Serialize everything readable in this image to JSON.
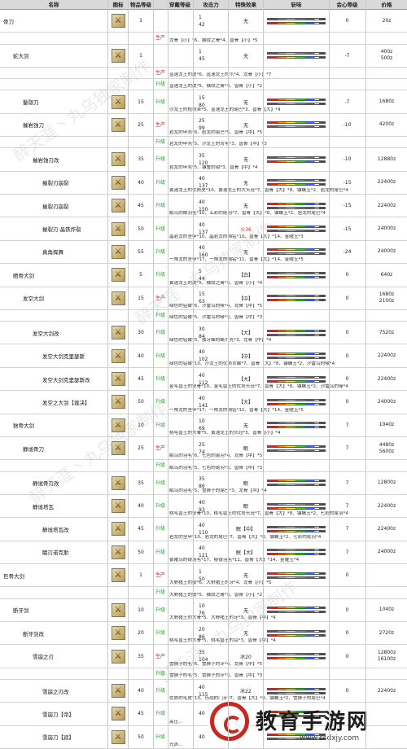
{
  "header": {
    "name": "名称",
    "icon": "图标",
    "rarity": "物品等级",
    "slot": "穿戴等级",
    "attack": "攻击力",
    "effect": "特殊效果",
    "sharpness": "斩味",
    "affinity": "会心等级",
    "price": "价格"
  },
  "rows": [
    {
      "name": "骨刀",
      "indent": 0,
      "rarity": "1",
      "slot": "1",
      "attack": "42",
      "effect": "无",
      "affinity": "0",
      "price": "20z",
      "status": "",
      "materials": ""
    },
    {
      "name": "",
      "indent": 0,
      "rarity": "",
      "slot": "",
      "attack": "",
      "effect": "",
      "affinity": "",
      "price": "",
      "status": "生产",
      "materials": "龙骨【小】*6、横纹之骨*4、兽骨【小】*5"
    },
    {
      "name": "蛇大剑",
      "indent": 1,
      "rarity": "1",
      "slot": "1",
      "attack": "45",
      "effect": "无",
      "affinity": "-7",
      "price": "400z\n500z",
      "status": "",
      "materials": ""
    },
    {
      "name": "",
      "indent": 0,
      "rarity": "",
      "slot": "",
      "attack": "",
      "effect": "",
      "affinity": "",
      "price": "",
      "status": "生产",
      "materials": "蓝速龙王的皮*6、蓝速龙王的爪*4、龙骨【小】*7"
    },
    {
      "name": "",
      "indent": 0,
      "rarity": "",
      "slot": "",
      "attack": "",
      "effect": "",
      "affinity": "",
      "price": "",
      "status": "升级",
      "materials": "蓝速龙王的皮*5、横纹之骨*3、兽骨【小】*2"
    },
    {
      "name": "鬣颚刀",
      "indent": 2,
      "rarity": "15",
      "slot": "15",
      "attack": "80",
      "effect": "无",
      "affinity": "-7",
      "price": "1680z",
      "status": "升级",
      "materials": "沙龙王的桔核茶*5、蓝速龙王的尾巴*3、兽骨【大】*4"
    },
    {
      "name": "摧岩蚀刀",
      "indent": 2,
      "rarity": "25",
      "slot": "25",
      "attack": "99",
      "effect": "无",
      "affinity": "-10",
      "price": "4200z",
      "status": "生产",
      "materials": "岩龙的甲壳*6、岩龙的尾巴*5、兽骨【中】*5"
    },
    {
      "name": "",
      "indent": 0,
      "rarity": "",
      "slot": "",
      "attack": "",
      "effect": "",
      "affinity": "",
      "price": "",
      "status": "升级",
      "materials": "岩龙的甲壳*5、沙龙王的背毛*3、兽骨【中】*3"
    },
    {
      "name": "摧岩蚀刃改",
      "indent": 3,
      "rarity": "35",
      "slot": "35",
      "attack": "120",
      "effect": "无",
      "affinity": "-10",
      "price": "12880z",
      "status": "升级",
      "materials": "岩龙的甲壳*5、镰蟹的钳*3、兽骨【中】*4"
    },
    {
      "name": "摧裂刃崩裂",
      "indent": 4,
      "rarity": "40",
      "slot": "40",
      "attack": "137",
      "effect": "无",
      "affinity": "-15",
      "price": "22400z",
      "status": "升级",
      "materials": "黄速龙王的优质皮*10、黄速龙王的大头冠*7、兽骨【大】*8、镰螺玉*2、岩龙的尾巴*4"
    },
    {
      "name": "摧裂刃崩裂",
      "indent": 4,
      "rarity": "45",
      "slot": "40",
      "attack": "150",
      "effect": "无",
      "affinity": "-15",
      "price": "22400z",
      "status": "升级",
      "materials": "眠鸟的眼羽毛*10、五彩的尾羽*7、兽骨【大】*8、镰螺玉*2、岩龙的尾巴*4"
    },
    {
      "name": "摧裂刃·晶铁炸裂",
      "indent": 4,
      "rarity": "50",
      "slot": "40",
      "attack": "137",
      "effect": "火36",
      "affinity": "-15",
      "price": "24000z",
      "status": "升级",
      "materials": "晶岩龙的坚甲*10、晶岩龙的翱钻*10、兽骨【大】*14、金曜玉*3"
    },
    {
      "name": "真角挥舞",
      "indent": 4,
      "rarity": "55",
      "slot": "40",
      "attack": "160",
      "effect": "无",
      "affinity": "-24",
      "price": "24000z",
      "status": "升级",
      "materials": "一角龙的坚甲*17、一角龙的翱钻*11、兽骨【大】*14、金曜玉*5"
    },
    {
      "name": "晒骨大剑",
      "indent": 1,
      "rarity": "5",
      "slot": "5",
      "attack": "44",
      "effect": "【白】",
      "affinity": "0",
      "price": "640z",
      "status": "升级",
      "materials": "黄速龙王的皮*5、横纹之骨*3、兽骨【小】*4"
    },
    {
      "name": "发空大剑",
      "indent": 2,
      "rarity": "15",
      "slot": "15",
      "attack": "63",
      "effect": "【中】",
      "affinity": "0",
      "price": "1680z\n2100z",
      "status": "生产",
      "materials": "绿色的钻碟*6、沙雷鸟的喙*4、龙骨【中】*5"
    },
    {
      "name": "",
      "indent": 0,
      "rarity": "",
      "slot": "",
      "attack": "",
      "effect": "",
      "affinity": "",
      "price": "",
      "status": "升级",
      "materials": "绿色的钻碟*5、沙雷鸟的喙*3、兽骨【中】*3"
    },
    {
      "name": "发空大剑改",
      "indent": 3,
      "rarity": "30",
      "slot": "30",
      "attack": "84",
      "effect": "【大】",
      "affinity": "0",
      "price": "7520z",
      "status": "升级",
      "materials": "绿色的钻碟*5、独牙蜂的蜥爪壳*3、龙骨【中】*4"
    },
    {
      "name": "发空大剑克里瑟斯",
      "indent": 4,
      "rarity": "40",
      "slot": "40",
      "attack": "102",
      "effect": "【中】",
      "affinity": "0",
      "price": "22400z",
      "status": "升级",
      "materials": "绿色的钻碟*10、沙龙王的优质背脑*7、兽骨【大】*8、镰螺玉*2、沙雷鸟的喙*4"
    },
    {
      "name": "发空大剑克里瑟斯改",
      "indent": 4,
      "rarity": "45",
      "slot": "40",
      "attack": "112",
      "effect": "【大】",
      "affinity": "0",
      "price": "22400z",
      "status": "升级",
      "materials": "金毛兽王的坚骨*10、金毛兽王的优势头冠*7、兽骨【大】*8、镰螺玉*2、沙雷鸟的喙*4"
    },
    {
      "name": "发空之大剑【裁决】",
      "indent": 4,
      "rarity": "50",
      "slot": "40",
      "attack": "141",
      "effect": "【大】",
      "affinity": "0",
      "price": "24000z",
      "status": "升级",
      "materials": "一角龙的坚甲*17、一角龙的翱钻*11、兽骨【大】*14、金曜玉*5"
    },
    {
      "name": "猞骨大剑",
      "indent": 1,
      "rarity": "10",
      "slot": "10",
      "attack": "69",
      "effect": "无",
      "affinity": "7",
      "price": "1040z",
      "status": "升级",
      "materials": "桃毛兽王的大骨*5、黄速龙王的头冠*3、兽骨【小】*4"
    },
    {
      "name": "静谧骨刀",
      "indent": 2,
      "rarity": "25",
      "slot": "25",
      "attack": "74",
      "effect": "眠",
      "affinity": "7",
      "price": "4480z\n5600z",
      "status": "生产",
      "materials": "眠鸟的羽毛*6、七色的尾羽*4、龙骨【中】*5"
    },
    {
      "name": "",
      "indent": 0,
      "rarity": "",
      "slot": "",
      "attack": "",
      "effect": "",
      "affinity": "",
      "price": "",
      "status": "升级",
      "materials": "眠鸟的羽毛*5、七色的尾羽*3、兽骨【中】*3"
    },
    {
      "name": "静谧骨刃改",
      "indent": 3,
      "rarity": "35",
      "slot": "35",
      "attack": "86",
      "effect": "眠",
      "affinity": "7",
      "price": "12800z",
      "status": "升级",
      "materials": "眠鸟的羽毛*5、雪狮子的尾巴*3、龙骨【中】*4"
    },
    {
      "name": "静谧塔瓦",
      "indent": 3,
      "rarity": "40",
      "slot": "40",
      "attack": "93",
      "effect": "眠",
      "affinity": "7",
      "price": "22400z",
      "status": "升级",
      "materials": "桃毛兽王的坚骨*10、桃毛兽王的优势头冠*7、兽骨【大】*8、镰螺玉*2、七彩的尾羽*4"
    },
    {
      "name": "静谧塔瓦改",
      "indent": 4,
      "rarity": "45",
      "slot": "40",
      "attack": "110",
      "effect": "眠【中】",
      "affinity": "7",
      "price": "22400z",
      "status": "升级",
      "materials": "岩龙的坚甲*10、岩龙的尾巴*7、兽骨【大】*8、镰螺玉*2、七彩的尾羽*4"
    },
    {
      "name": "眠刃诺克斯",
      "indent": 4,
      "rarity": "50",
      "slot": "40",
      "attack": "121",
      "effect": "眠【大】",
      "affinity": "7",
      "price": "24000z",
      "status": "升级",
      "materials": "银曜鸟的银羽毛*17、秘银羽毛*11、兽骨【大】*14、金曜玉*4"
    },
    {
      "name": "巨骨大剑",
      "indent": 0,
      "rarity": "1",
      "slot": "1",
      "attack": "50",
      "effect": "无",
      "affinity": "0",
      "price": "",
      "status": "生产",
      "materials": "大野猪王的鬃*6、大野猪王的牙*4、龙骨【小】*5"
    },
    {
      "name": "",
      "indent": 0,
      "rarity": "",
      "slot": "",
      "attack": "",
      "effect": "",
      "affinity": "",
      "price": "",
      "status": "升级",
      "materials": "大野猪王的鬃*5、横纹之骨*3、兽骨【小】*2"
    },
    {
      "name": "断牙剑",
      "indent": 1,
      "rarity": "10",
      "slot": "10",
      "attack": "76",
      "effect": "无",
      "affinity": "0",
      "price": "1040z",
      "status": "升级",
      "materials": "大野猪王的大骨*5、大野猪王的牙*3、兽骨【中】*4"
    },
    {
      "name": "断牙剑改",
      "indent": 2,
      "rarity": "20",
      "slot": "20",
      "attack": "86",
      "effect": "无",
      "affinity": "0",
      "price": "2720z",
      "status": "升级",
      "materials": "桃毛兽王的大骨*5、桃毛兽王的耳*3、兽骨【中】*4"
    },
    {
      "name": "雪崩之刃",
      "indent": 3,
      "rarity": "35",
      "slot": "35",
      "attack": "104",
      "effect": "冰20",
      "affinity": "0",
      "price": "12800z\n16100z",
      "status": "生产",
      "materials": "雪狮子的毛*6、雪狮子的牙*4、龙骨【中】*5"
    },
    {
      "name": "",
      "indent": 0,
      "rarity": "",
      "slot": "",
      "attack": "",
      "effect": "",
      "affinity": "",
      "price": "",
      "status": "升级",
      "materials": "雪狮子的毛*5、雪狮子的牙*3、兽骨【中】*3"
    },
    {
      "name": "雪崩之刃改",
      "indent": 4,
      "rarity": "40",
      "slot": "40",
      "attack": "115",
      "effect": "冰22",
      "affinity": "0",
      "price": "22400z",
      "status": "升级",
      "materials": "优质的毛皮*10、历战的门牙*7、兽骨【大】*8、镰螺玉*2、雪狮子的尾巴*4"
    },
    {
      "name": "雪崩刀【帝】",
      "indent": 4,
      "rarity": "45",
      "slot": "40",
      "attack": "",
      "effect": "",
      "affinity": "",
      "price": "",
      "status": "升级",
      "materials": "高压…"
    },
    {
      "name": "雪崩刀【寂】",
      "indent": 4,
      "rarity": "50",
      "slot": "40",
      "attack": "",
      "effect": "",
      "affinity": "",
      "price": "",
      "status": "升级",
      "materials": "光羔…"
    }
  ],
  "watermarks": [
    "醉天涯丶丸乌独家制作",
    "醉天涯丶丸乌独家制作",
    "醉天涯丶丸乌独家制作",
    "醉天涯丶丸乌独家制作"
  ],
  "logo": {
    "title": "教育手游网",
    "url": "www.ssdxjy.com"
  },
  "colors": {
    "produce": "#d02020",
    "upgrade": "#2e9a2e",
    "fire": "#d02020",
    "logo_red": "#c7281f"
  }
}
